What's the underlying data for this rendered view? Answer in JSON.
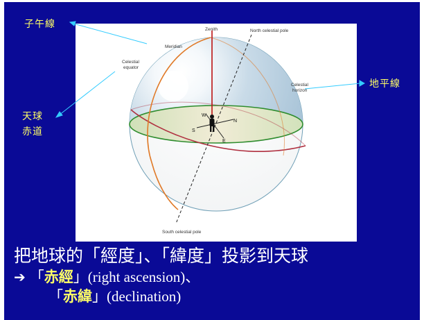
{
  "annotations": {
    "meridian_cn": "子午線",
    "equator_cn_1": "天球",
    "equator_cn_2": "赤道",
    "horizon_cn": "地平線"
  },
  "figure": {
    "zenith": "Zenith",
    "north_pole": "North celestial pole",
    "meridian": "Meridian",
    "celestial_equator_1": "Celestial",
    "celestial_equator_2": "equator",
    "celestial_horizon_1": "Celestial",
    "celestial_horizon_2": "horizon",
    "south_pole": "South celestial pole",
    "compass_w": "W",
    "compass_n": "N",
    "compass_s": "S",
    "compass_e": "E"
  },
  "text": {
    "line1": "把地球的「經度」、「緯度」投影到天球",
    "line2_arrow": "➔",
    "line2_open": "「",
    "line2_highlight": "赤經",
    "line2_rest": "」(right ascension)、",
    "line3_open": "「",
    "line3_highlight": "赤緯",
    "line3_rest": "」(declination)"
  },
  "colors": {
    "background": "#0a0a96",
    "annotation": "#ffff66",
    "callout_line": "#33ccff",
    "meridian": "#e07a28",
    "equator": "#b03040",
    "horizon": "#3a9a3a"
  }
}
